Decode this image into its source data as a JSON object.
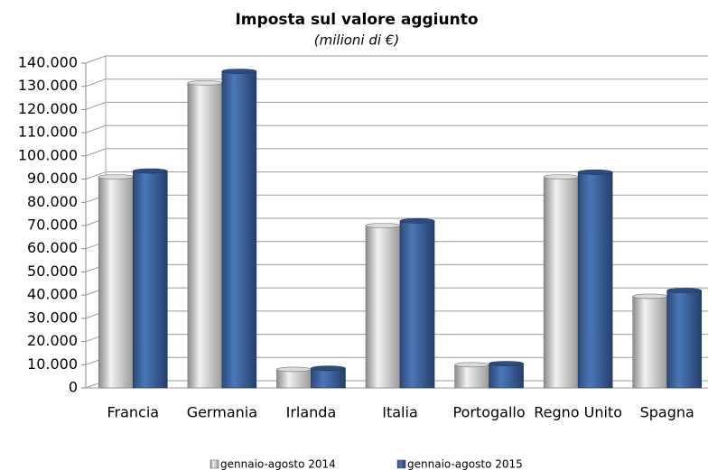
{
  "chart_data": {
    "type": "bar",
    "title": "Imposta sul valore aggiunto",
    "subtitle": "(milioni di €)",
    "categories": [
      "Francia",
      "Germania",
      "Irlanda",
      "Italia",
      "Portogallo",
      "Regno Unito",
      "Spagna"
    ],
    "series": [
      {
        "name": "gennaio-agosto 2014",
        "color": "#c4c4c4",
        "values": [
          91000,
          131500,
          8000,
          70000,
          10000,
          91000,
          39500
        ]
      },
      {
        "name": "gennaio-agosto 2015",
        "color": "#3b64a0",
        "values": [
          93500,
          136500,
          8500,
          72000,
          10500,
          93000,
          42000
        ]
      }
    ],
    "ylim": [
      0,
      140000
    ],
    "yticks": [
      0,
      {
        "value": 10000,
        "label": "10.000"
      },
      {
        "value": 20000,
        "label": "20.000"
      },
      {
        "value": 30000,
        "label": "30.000"
      },
      {
        "value": 40000,
        "label": "40.000"
      },
      {
        "value": 50000,
        "label": "50.000"
      },
      {
        "value": 60000,
        "label": "60.000"
      },
      {
        "value": 70000,
        "label": "70.000"
      },
      {
        "value": 80000,
        "label": "80.000"
      },
      {
        "value": 90000,
        "label": "90.000"
      },
      {
        "value": 100000,
        "label": "100.000"
      },
      {
        "value": 110000,
        "label": "110.000"
      },
      {
        "value": 120000,
        "label": "120.000"
      },
      {
        "value": 130000,
        "label": "130.000"
      },
      {
        "value": 140000,
        "label": "140.000"
      }
    ],
    "grid": true,
    "legend": "bottom"
  }
}
